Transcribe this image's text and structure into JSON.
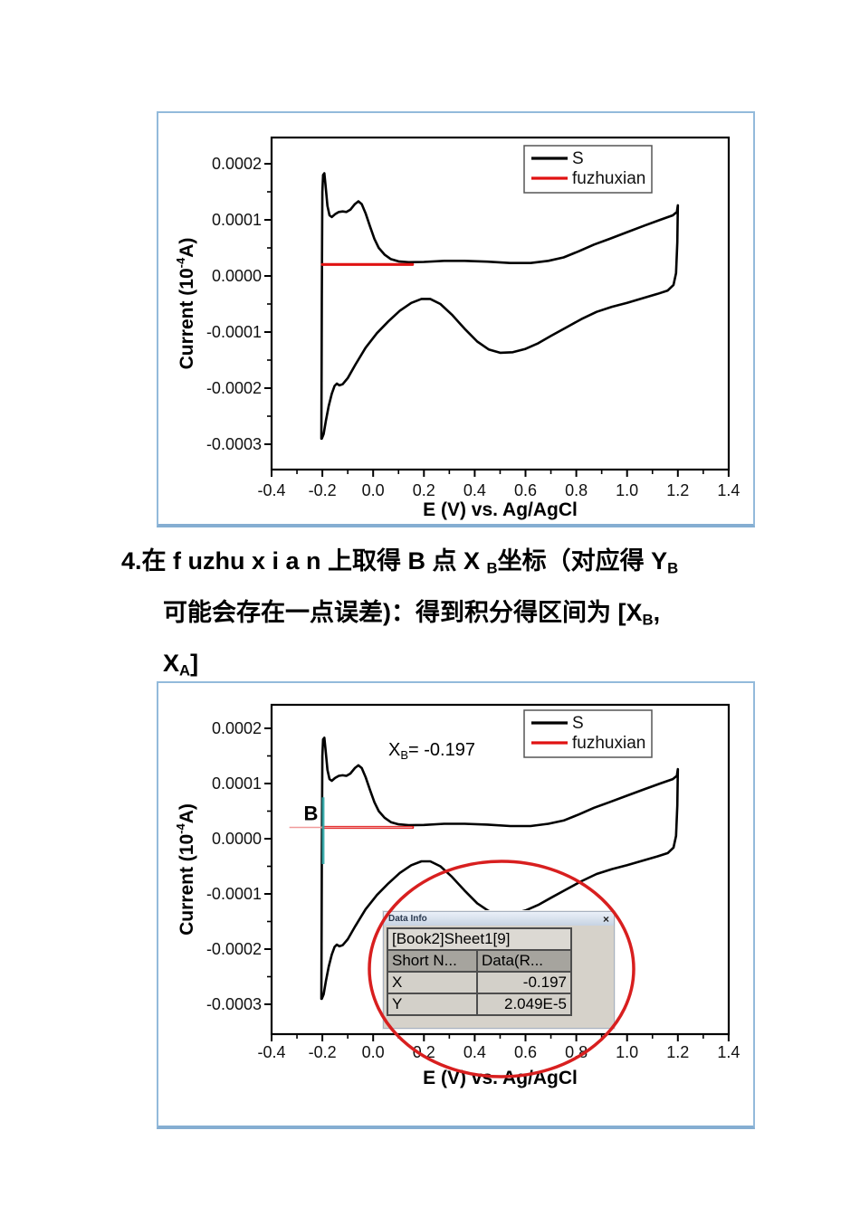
{
  "note": {
    "lines": [
      {
        "segs": [
          {
            "t": "4.在 f uzhu x i a n 上取得 B 点 X "
          },
          {
            "t": "B",
            "sub": 1
          },
          {
            "t": "坐标（对应得 Y"
          },
          {
            "t": "B",
            "sub": 1
          }
        ]
      },
      {
        "segs": [
          {
            "t": "可能会存在一点误差)：得到积分得区间为 [X"
          },
          {
            "t": "B",
            "sub": 1
          },
          {
            "t": ","
          }
        ]
      },
      {
        "segs": [
          {
            "t": "X"
          },
          {
            "t": "A",
            "sub": 1
          },
          {
            "t": "]"
          }
        ]
      }
    ]
  },
  "chart_data": [
    {
      "id": "cv-top",
      "type": "line",
      "xlabel": "E (V) vs. Ag/AgCl",
      "ylabel_parts": [
        "Current (10",
        "-4",
        "A)"
      ],
      "xlim": [
        -0.4,
        1.4
      ],
      "ylim": [
        -0.0003,
        0.0002
      ],
      "xticks": [
        "-0.4",
        "-0.2",
        "0.0",
        "0.2",
        "0.4",
        "0.6",
        "0.8",
        "1.0",
        "1.2",
        "1.4"
      ],
      "yticks": [
        "0.0002",
        "0.0001",
        "0.0000",
        "-0.0001",
        "-0.0002",
        "-0.0003"
      ],
      "grid": false,
      "legend_position": "upper-right",
      "legend": [
        {
          "label": "S",
          "color": "#000000"
        },
        {
          "label": "fuzhuxian",
          "color": "#e01212"
        }
      ],
      "series": [
        {
          "name": "S",
          "color": "#000000",
          "width": 2.6,
          "points": [
            [
              -0.204,
              -0.00029
            ],
            [
              -0.203,
              -0.00015
            ],
            [
              -0.202,
              -4e-05
            ],
            [
              -0.201,
              6e-05
            ],
            [
              -0.2,
              0.00015
            ],
            [
              -0.197,
              0.00018
            ],
            [
              -0.192,
              0.000183
            ],
            [
              -0.187,
              0.00016
            ],
            [
              -0.18,
              0.000125
            ],
            [
              -0.172,
              0.000108
            ],
            [
              -0.163,
              0.000105
            ],
            [
              -0.15,
              0.00011
            ],
            [
              -0.135,
              0.000114
            ],
            [
              -0.12,
              0.000115
            ],
            [
              -0.105,
              0.000114
            ],
            [
              -0.09,
              0.000118
            ],
            [
              -0.072,
              0.000128
            ],
            [
              -0.058,
              0.000133
            ],
            [
              -0.045,
              0.000128
            ],
            [
              -0.03,
              0.000112
            ],
            [
              -0.012,
              8.8e-05
            ],
            [
              0.005,
              6.6e-05
            ],
            [
              0.022,
              5e-05
            ],
            [
              0.045,
              3.8e-05
            ],
            [
              0.07,
              3e-05
            ],
            [
              0.1,
              2.6e-05
            ],
            [
              0.14,
              2.45e-05
            ],
            [
              0.2,
              2.5e-05
            ],
            [
              0.28,
              2.7e-05
            ],
            [
              0.36,
              2.7e-05
            ],
            [
              0.45,
              2.55e-05
            ],
            [
              0.54,
              2.3e-05
            ],
            [
              0.62,
              2.3e-05
            ],
            [
              0.69,
              2.7e-05
            ],
            [
              0.75,
              3.3e-05
            ],
            [
              0.81,
              4.4e-05
            ],
            [
              0.87,
              5.6e-05
            ],
            [
              0.93,
              6.6e-05
            ],
            [
              1.0,
              7.8e-05
            ],
            [
              1.07,
              9e-05
            ],
            [
              1.13,
              0.0001
            ],
            [
              1.18,
              0.000108
            ],
            [
              1.196,
              0.000114
            ],
            [
              1.2,
              0.000126
            ],
            [
              1.198,
              6e-05
            ],
            [
              1.193,
              5e-06
            ],
            [
              1.183,
              -1.6e-05
            ],
            [
              1.16,
              -2.6e-05
            ],
            [
              1.12,
              -3.2e-05
            ],
            [
              1.06,
              -4e-05
            ],
            [
              1.0,
              -4.8e-05
            ],
            [
              0.94,
              -5.5e-05
            ],
            [
              0.88,
              -6.4e-05
            ],
            [
              0.82,
              -7.7e-05
            ],
            [
              0.76,
              -9.2e-05
            ],
            [
              0.7,
              -0.000107
            ],
            [
              0.65,
              -0.00012
            ],
            [
              0.6,
              -0.00013
            ],
            [
              0.55,
              -0.000136
            ],
            [
              0.5,
              -0.000137
            ],
            [
              0.455,
              -0.000131
            ],
            [
              0.41,
              -0.000117
            ],
            [
              0.36,
              -9.4e-05
            ],
            [
              0.31,
              -6.9e-05
            ],
            [
              0.265,
              -5e-05
            ],
            [
              0.225,
              -4.1e-05
            ],
            [
              0.19,
              -4.1e-05
            ],
            [
              0.15,
              -4.8e-05
            ],
            [
              0.105,
              -6.2e-05
            ],
            [
              0.06,
              -8.1e-05
            ],
            [
              0.015,
              -0.000102
            ],
            [
              -0.03,
              -0.000128
            ],
            [
              -0.07,
              -0.000158
            ],
            [
              -0.1,
              -0.000182
            ],
            [
              -0.12,
              -0.000193
            ],
            [
              -0.133,
              -0.000195
            ],
            [
              -0.143,
              -0.000192
            ],
            [
              -0.152,
              -0.000196
            ],
            [
              -0.163,
              -0.00021
            ],
            [
              -0.175,
              -0.000232
            ],
            [
              -0.186,
              -0.000258
            ],
            [
              -0.195,
              -0.000282
            ],
            [
              -0.202,
              -0.00029
            ]
          ]
        },
        {
          "name": "fuzhuxian",
          "color": "#e01212",
          "width": 3.2,
          "points": [
            [
              -0.2,
              2.05e-05
            ],
            [
              0.155,
              2.05e-05
            ]
          ]
        }
      ]
    },
    {
      "id": "cv-annotated",
      "type": "line",
      "xlabel": "E (V) vs. Ag/AgCl",
      "ylabel_parts": [
        "Current (10",
        "-4",
        "A)"
      ],
      "xlim": [
        -0.4,
        1.4
      ],
      "ylim": [
        -0.0003,
        0.0002
      ],
      "xticks": [
        "-0.4",
        "-0.2",
        "0.0",
        "0.2",
        "0.4",
        "0.6",
        "0.8",
        "1.0",
        "1.2",
        "1.4"
      ],
      "yticks": [
        "0.0002",
        "0.0001",
        "0.0000",
        "-0.0001",
        "-0.0002",
        "-0.0003"
      ],
      "grid": false,
      "legend_position": "upper-right",
      "legend": [
        {
          "label": "S",
          "color": "#000000"
        },
        {
          "label": "fuzhuxian",
          "color": "#e01212"
        }
      ],
      "series_same_as": 0,
      "annotations": {
        "xb_label": {
          "main": "X",
          "sub": "B",
          "rest": "= -0.197",
          "x": 0.06,
          "y": 0.000151
        },
        "b_label": {
          "text": "B",
          "x": -0.245,
          "y": 3.35e-05
        },
        "cursor": {
          "x": -0.197,
          "y_from": 7.5e-05,
          "y_to": -4.6e-05,
          "color": "#2fa8a8"
        },
        "aux_thin": {
          "x_from": -0.33,
          "x_to": 0.155,
          "y": 2.05e-05,
          "color": "#f09a9a"
        },
        "ellipse_color": "#d81f1f"
      },
      "data_info": {
        "window_title": "Data Info",
        "close_label": "×",
        "book_row": "[Book2]Sheet1[9]",
        "headers": [
          "Short N...",
          "Data(R..."
        ],
        "rows": [
          [
            "X",
            "-0.197"
          ],
          [
            "Y",
            "2.049E-5"
          ]
        ]
      }
    }
  ]
}
